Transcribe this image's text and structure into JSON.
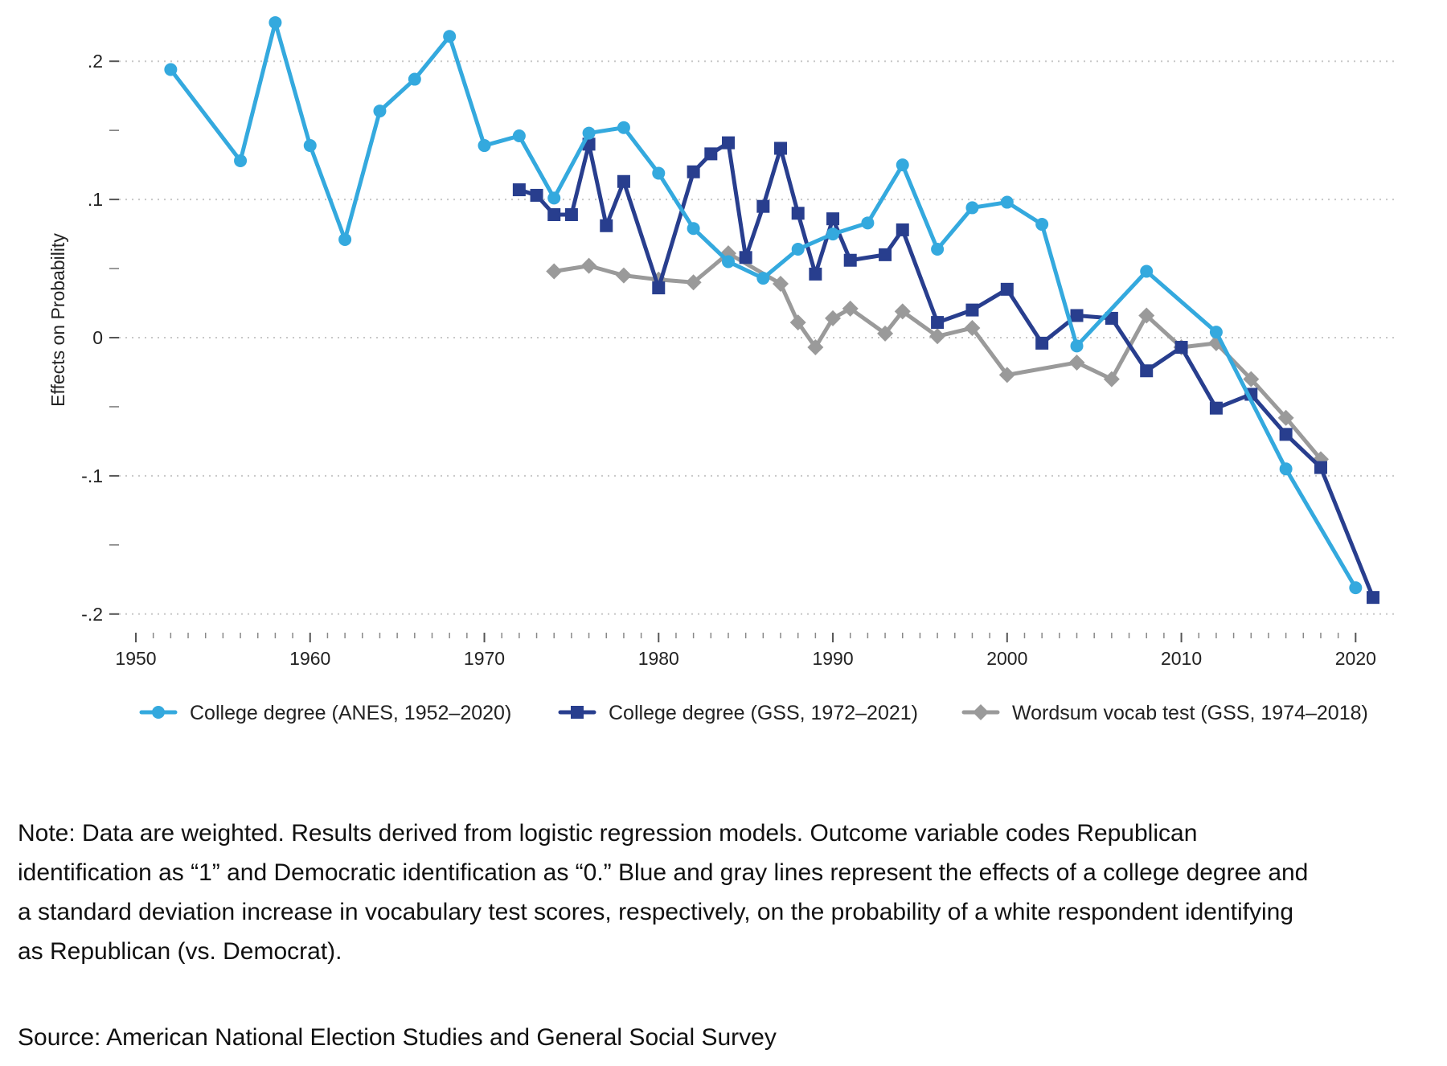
{
  "chart_data": {
    "type": "line",
    "title": "",
    "xlabel": "",
    "ylabel": "Effects on Probability",
    "xlim": [
      1950,
      2021
    ],
    "ylim": [
      -0.2,
      0.22
    ],
    "x_ticks": [
      {
        "value": 1950,
        "label": "1950"
      },
      {
        "value": 1960,
        "label": "1960"
      },
      {
        "value": 1970,
        "label": "1970"
      },
      {
        "value": 1980,
        "label": "1980"
      },
      {
        "value": 1990,
        "label": "1990"
      },
      {
        "value": 2000,
        "label": "2000"
      },
      {
        "value": 2010,
        "label": "2010"
      },
      {
        "value": 2020,
        "label": "2020"
      }
    ],
    "y_ticks": [
      {
        "value": 0.2,
        "label": ".2"
      },
      {
        "value": 0.1,
        "label": ".1"
      },
      {
        "value": 0,
        "label": "0"
      },
      {
        "value": -0.1,
        "label": "-.1"
      },
      {
        "value": -0.2,
        "label": "-.2"
      }
    ],
    "y_minor_ticks": [
      0.15,
      0.05,
      -0.05,
      -0.15
    ],
    "grid": true,
    "legend_position": "bottom",
    "series": [
      {
        "name": "College degree (ANES, 1952–2020)",
        "color": "#34a9de",
        "marker": "circle",
        "x": [
          1952,
          1956,
          1958,
          1960,
          1962,
          1964,
          1966,
          1968,
          1970,
          1972,
          1974,
          1976,
          1978,
          1980,
          1982,
          1984,
          1986,
          1988,
          1990,
          1992,
          1994,
          1996,
          1998,
          2000,
          2002,
          2004,
          2008,
          2012,
          2016,
          2020
        ],
        "y": [
          0.194,
          0.128,
          0.228,
          0.139,
          0.071,
          0.164,
          0.187,
          0.218,
          0.139,
          0.146,
          0.101,
          0.148,
          0.152,
          0.119,
          0.079,
          0.055,
          0.043,
          0.064,
          0.075,
          0.083,
          0.125,
          0.064,
          0.094,
          0.098,
          0.082,
          -0.006,
          0.048,
          0.004,
          -0.095,
          -0.181
        ]
      },
      {
        "name": "College degree (GSS, 1972–2021)",
        "color": "#283e8e",
        "marker": "square",
        "x": [
          1972,
          1973,
          1974,
          1975,
          1976,
          1977,
          1978,
          1980,
          1982,
          1983,
          1984,
          1985,
          1986,
          1987,
          1988,
          1989,
          1990,
          1991,
          1993,
          1994,
          1996,
          1998,
          2000,
          2002,
          2004,
          2006,
          2008,
          2010,
          2012,
          2014,
          2016,
          2018,
          2021
        ],
        "y": [
          0.107,
          0.103,
          0.089,
          0.089,
          0.14,
          0.081,
          0.113,
          0.036,
          0.12,
          0.133,
          0.141,
          0.058,
          0.095,
          0.137,
          0.09,
          0.046,
          0.086,
          0.056,
          0.06,
          0.078,
          0.011,
          0.02,
          0.035,
          -0.004,
          0.016,
          0.014,
          -0.024,
          -0.007,
          -0.051,
          -0.041,
          -0.07,
          -0.094,
          -0.188
        ]
      },
      {
        "name": "Wordsum vocab test (GSS, 1974–2018)",
        "color": "#9a9a9a",
        "marker": "diamond",
        "x": [
          1974,
          1976,
          1978,
          1980,
          1982,
          1984,
          1987,
          1988,
          1989,
          1990,
          1991,
          1993,
          1994,
          1996,
          1998,
          2000,
          2004,
          2006,
          2008,
          2010,
          2012,
          2014,
          2016,
          2018
        ],
        "y": [
          0.048,
          0.052,
          0.045,
          0.042,
          0.04,
          0.061,
          0.039,
          0.011,
          -0.007,
          0.014,
          0.021,
          0.003,
          0.019,
          0.001,
          0.007,
          -0.027,
          -0.018,
          -0.03,
          0.016,
          -0.007,
          -0.004,
          -0.03,
          -0.058,
          -0.088
        ]
      }
    ]
  },
  "notes": {
    "note": "Note: Data are weighted. Results derived from logistic regression models. Outcome variable codes Republican identification as “1” and Democratic identification as “0.” Blue and gray lines represent the effects of a college degree and a standard deviation increase in vocabulary test scores, respectively, on the probability of a white respondent identifying as Republican (vs. Democrat).",
    "source": "Source: American National Election Studies and General Social Survey"
  }
}
